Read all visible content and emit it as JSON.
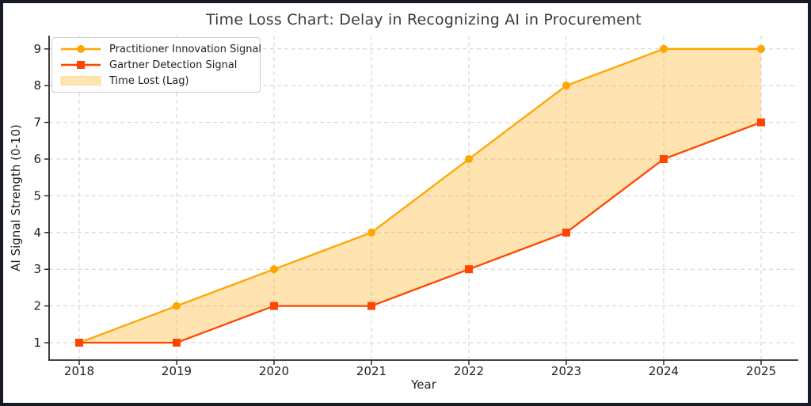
{
  "figure": {
    "border_color": "#161b26",
    "background": "#ffffff"
  },
  "chart_data": {
    "type": "line",
    "title": "Time Loss Chart: Delay in Recognizing AI in Procurement",
    "xlabel": "Year",
    "ylabel": "AI Signal Strength (0-10)",
    "x": [
      2018,
      2019,
      2020,
      2021,
      2022,
      2023,
      2024,
      2025
    ],
    "series": [
      {
        "name": "Practitioner Innovation Signal",
        "values": [
          1,
          2,
          3,
          4,
          6,
          8,
          9,
          9
        ],
        "color": "#FFA500",
        "marker": "circle"
      },
      {
        "name": "Gartner Detection Signal",
        "values": [
          1,
          1,
          2,
          2,
          3,
          4,
          6,
          7
        ],
        "color": "#FF4500",
        "marker": "square"
      }
    ],
    "fill_between": {
      "label": "Time Lost (Lag)",
      "color": "rgba(255,165,0,0.30)"
    },
    "yticks": [
      1,
      2,
      3,
      4,
      5,
      6,
      7,
      8,
      9
    ],
    "xticks": [
      2018,
      2019,
      2020,
      2021,
      2022,
      2023,
      2024,
      2025
    ],
    "ylim": [
      0.5,
      9.4
    ],
    "xlim": [
      2017.7,
      2025.4
    ],
    "grid": {
      "visible": true,
      "style": "dashed"
    },
    "legend": {
      "position": "upper-left",
      "entries": [
        "Practitioner Innovation Signal",
        "Gartner Detection Signal",
        "Time Lost (Lag)"
      ]
    },
    "colors": {
      "grid": "#d0d0d0",
      "spine": "#2a2a2a",
      "tick_text": "#1f1f1f",
      "title_text": "#3b3b3b",
      "legend_border": "#cccccc"
    }
  }
}
